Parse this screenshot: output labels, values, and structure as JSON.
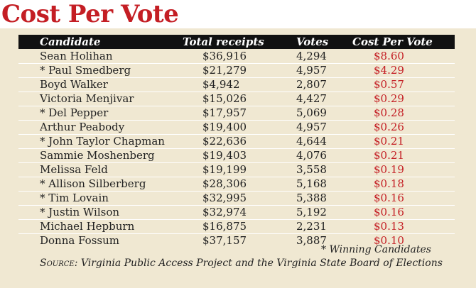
{
  "title": "Cost Per Vote",
  "chart_data": {
    "type": "table",
    "title": "Cost Per Vote",
    "columns": [
      "Candidate",
      "Total receipts",
      "Votes",
      "Cost Per Vote"
    ],
    "rows": [
      {
        "candidate": "Sean Holihan",
        "receipts": "$36,916",
        "votes": "4,294",
        "cost": "$8.60"
      },
      {
        "candidate": "* Paul Smedberg",
        "receipts": "$21,279",
        "votes": "4,957",
        "cost": "$4.29"
      },
      {
        "candidate": "Boyd Walker",
        "receipts": "$4,942",
        "votes": "2,807",
        "cost": "$0.57"
      },
      {
        "candidate": "Victoria Menjivar",
        "receipts": "$15,026",
        "votes": "4,427",
        "cost": "$0.29"
      },
      {
        "candidate": "* Del Pepper",
        "receipts": "$17,957",
        "votes": "5,069",
        "cost": "$0.28"
      },
      {
        "candidate": "Arthur Peabody",
        "receipts": "$19,400",
        "votes": "4,957",
        "cost": "$0.26"
      },
      {
        "candidate": "* John Taylor Chapman",
        "receipts": "$22,636",
        "votes": "4,644",
        "cost": "$0.21"
      },
      {
        "candidate": "Sammie Moshenberg",
        "receipts": "$19,403",
        "votes": "4,076",
        "cost": "$0.21"
      },
      {
        "candidate": "Melissa Feld",
        "receipts": "$19,199",
        "votes": "3,558",
        "cost": "$0.19"
      },
      {
        "candidate": "* Allison Silberberg",
        "receipts": "$28,306",
        "votes": "5,168",
        "cost": "$0.18"
      },
      {
        "candidate": "* Tim Lovain",
        "receipts": "$32,995",
        "votes": "5,388",
        "cost": "$0.16"
      },
      {
        "candidate": "* Justin Wilson",
        "receipts": "$32,974",
        "votes": "5,192",
        "cost": "$0.16"
      },
      {
        "candidate": "Michael Hepburn",
        "receipts": "$16,875",
        "votes": "2,231",
        "cost": "$0.13"
      },
      {
        "candidate": "Donna Fossum",
        "receipts": "$37,157",
        "votes": "3,887",
        "cost": "$0.10"
      }
    ],
    "footnote": "* Winning Candidates",
    "source_label": "Source:",
    "source_text": " Virginia Public Access Project and the Virginia State Board of Elections"
  },
  "colors": {
    "accent": "#c41e24",
    "header_bg": "#111111",
    "panel_bg": "#f0e8d2"
  }
}
